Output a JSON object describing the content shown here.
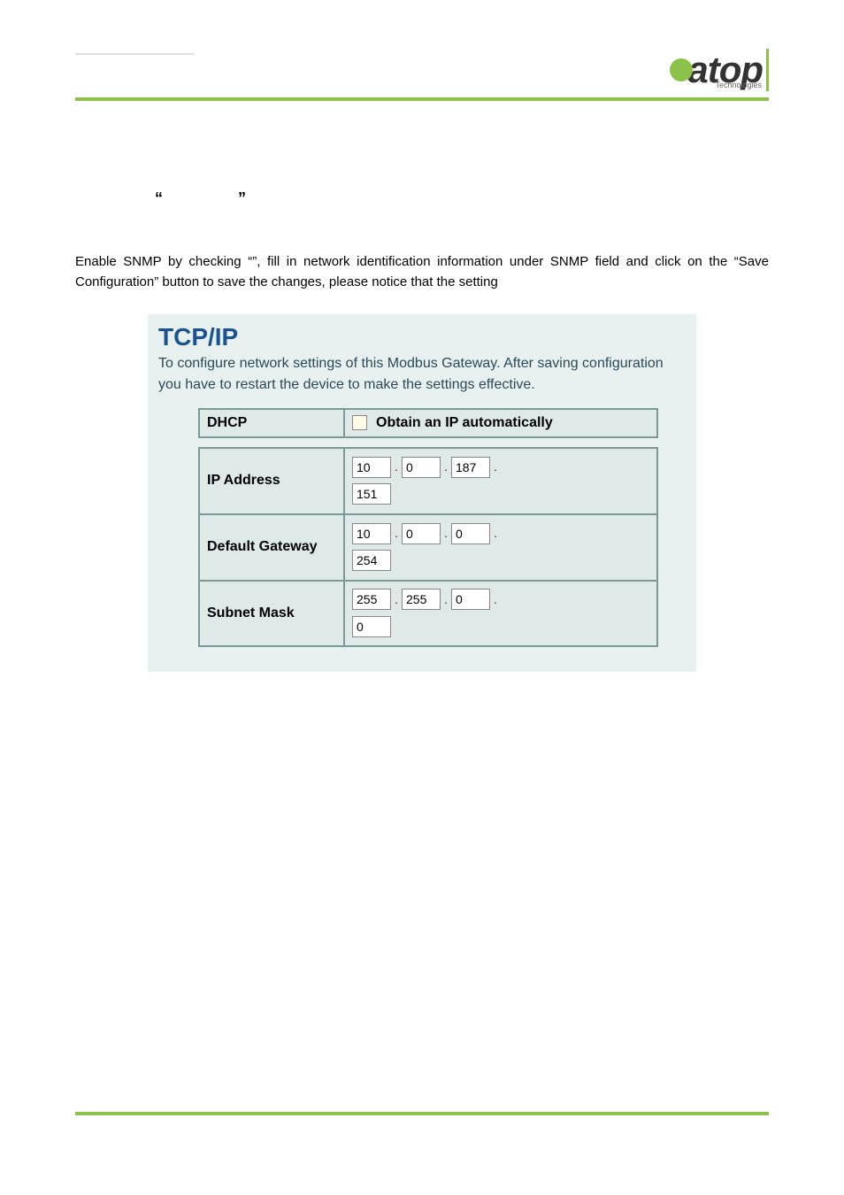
{
  "logo": {
    "text": "atop",
    "subtext": "Technologies"
  },
  "quote": {
    "left": "“",
    "right": "”"
  },
  "bodyText": {
    "line1_pre": "Enable SNMP by checking “",
    "line1_mid": "",
    "line1_post": "”, fill in network identification information under SNMP field and click on the “Save Configuration” button to save the changes, please notice that the setting"
  },
  "panel": {
    "title": "TCP/IP",
    "desc": "To configure network settings of this Modbus Gateway. After saving configuration you have to restart the device to make the settings effective."
  },
  "dhcp": {
    "label": "DHCP",
    "text": "Obtain an IP automatically",
    "checked": false
  },
  "ipAddress": {
    "label": "IP Address",
    "o1": "10",
    "o2": "0",
    "o3": "187",
    "o4": "151"
  },
  "gateway": {
    "label": "Default Gateway",
    "o1": "10",
    "o2": "0",
    "o3": "0",
    "o4": "254"
  },
  "subnet": {
    "label": "Subnet Mask",
    "o1": "255",
    "o2": "255",
    "o3": "0",
    "o4": "0"
  },
  "colors": {
    "accent_green": "#8bc34a",
    "panel_bg": "#e8f1ef",
    "title_blue": "#1a5490",
    "border_gray": "#7a9a98"
  }
}
